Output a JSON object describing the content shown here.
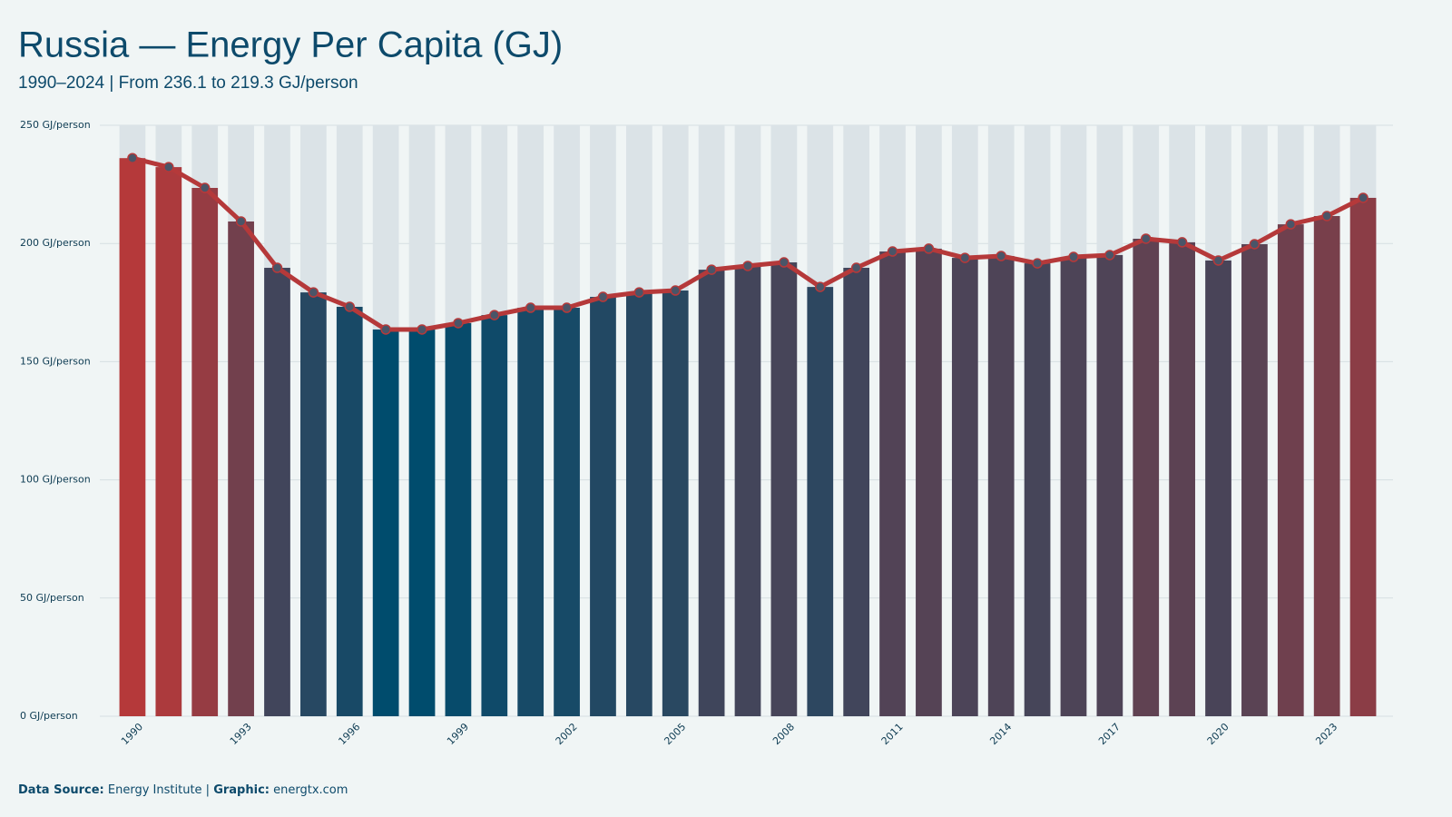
{
  "chart_data": {
    "type": "bar-line",
    "title": "Russia — Energy Per Capita (GJ)",
    "subtitle": "1990–2024 | From 236.1 to 219.3 GJ/person",
    "categories": [
      "1990",
      null,
      null,
      "1993",
      null,
      null,
      "1996",
      null,
      null,
      "1999",
      null,
      null,
      "2002",
      null,
      null,
      "2005",
      null,
      null,
      "2008",
      null,
      null,
      "2011",
      null,
      null,
      "2014",
      null,
      null,
      "2017",
      null,
      null,
      "2020",
      null,
      null,
      "2023",
      null
    ],
    "values": [
      236.1,
      232.3,
      223.5,
      209.3,
      189.7,
      179.3,
      173.2,
      163.6,
      163.6,
      166.3,
      169.7,
      172.8,
      172.8,
      177.4,
      179.3,
      180.1,
      188.9,
      190.5,
      192.0,
      181.6,
      189.7,
      196.6,
      197.8,
      193.9,
      194.7,
      191.6,
      194.3,
      195.1,
      202.0,
      200.5,
      192.8,
      199.7,
      208.1,
      211.6,
      219.3
    ],
    "color_scale": [
      "#004c6d",
      "#b5393a"
    ],
    "line_color": "#b5393a",
    "marker_color": "#4a5568",
    "ylim": [
      0,
      250
    ],
    "yticks": [
      {
        "value": 0,
        "label": "0 GJ/person"
      },
      {
        "value": 50,
        "label": "50 GJ/person"
      },
      {
        "value": 100,
        "label": "100 GJ/person"
      },
      {
        "value": 150,
        "label": "150 GJ/person"
      },
      {
        "value": 200,
        "label": "200 GJ/person"
      },
      {
        "value": 250,
        "label": "250 GJ/person"
      }
    ],
    "grid": true,
    "footer": {
      "source_label": "Data Source:",
      "source": "Energy Institute |",
      "graphic_label": "Graphic:",
      "graphic": "energtx.com"
    }
  }
}
